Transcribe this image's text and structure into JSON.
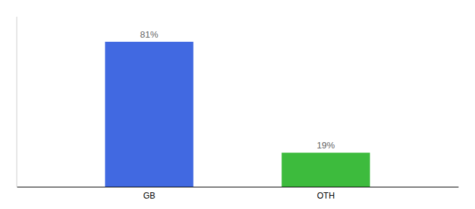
{
  "chart_data": {
    "type": "bar",
    "categories": [
      "GB",
      "OTH"
    ],
    "values": [
      81,
      19
    ],
    "value_labels": [
      "81%",
      "19%"
    ],
    "colors": [
      "#4169e1",
      "#3dbb3d"
    ],
    "ylim": [
      0,
      95
    ],
    "data_labels": true,
    "tick_labels": "x"
  }
}
